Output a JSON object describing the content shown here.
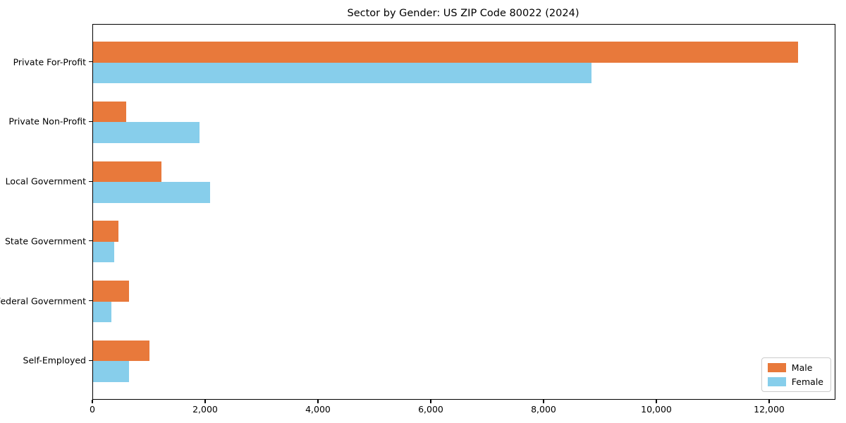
{
  "chart_data": {
    "type": "bar",
    "orientation": "horizontal",
    "title": "Sector by Gender: US ZIP Code 80022 (2024)",
    "categories": [
      "Private For-Profit",
      "Private Non-Profit",
      "Local Government",
      "State Government",
      "Federal Government",
      "Self-Employed"
    ],
    "series": [
      {
        "name": "Male",
        "color": "#e8793b",
        "values": [
          12500,
          590,
          1210,
          450,
          640,
          1000
        ]
      },
      {
        "name": "Female",
        "color": "#87ceeb",
        "values": [
          8840,
          1890,
          2080,
          380,
          330,
          640
        ]
      }
    ],
    "xlabel": "",
    "ylabel": "",
    "xlim": [
      0,
      13150
    ],
    "xticks": [
      0,
      2000,
      4000,
      6000,
      8000,
      10000,
      12000
    ],
    "xtick_labels": [
      "0",
      "2,000",
      "4,000",
      "6,000",
      "8,000",
      "10,000",
      "12,000"
    ],
    "grid": false,
    "bar_width_fraction": 0.35,
    "legend": {
      "position": "lower right"
    }
  }
}
